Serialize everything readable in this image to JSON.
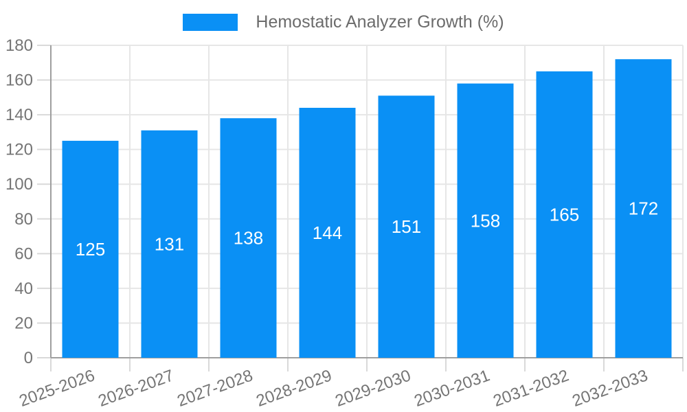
{
  "chart_data": {
    "type": "bar",
    "series_name": "Hemostatic Analyzer Growth (%)",
    "categories": [
      "2025-2026",
      "2026-2027",
      "2027-2028",
      "2028-2029",
      "2029-2030",
      "2030-2031",
      "2031-2032",
      "2032-2033"
    ],
    "values": [
      125,
      131,
      138,
      144,
      151,
      158,
      165,
      172
    ],
    "title": "",
    "xlabel": "",
    "ylabel": "",
    "ylim": [
      0,
      180
    ],
    "ytick_step": 20,
    "ytick_labels": [
      "0",
      "20",
      "40",
      "60",
      "80",
      "100",
      "120",
      "140",
      "160",
      "180"
    ],
    "grid": true,
    "legend_position": "top-center",
    "value_labels_shown": true,
    "value_label_position": "inside-center"
  },
  "colors": {
    "background": "#ffffff",
    "bar": "#0a90f5",
    "gridline": "#e6e6e6",
    "tick": "#d9d9d9",
    "axis_line": "#9e9e9e",
    "axis_text": "#757575",
    "legend_text": "#6b6b6b",
    "value_text": "#ffffff"
  }
}
